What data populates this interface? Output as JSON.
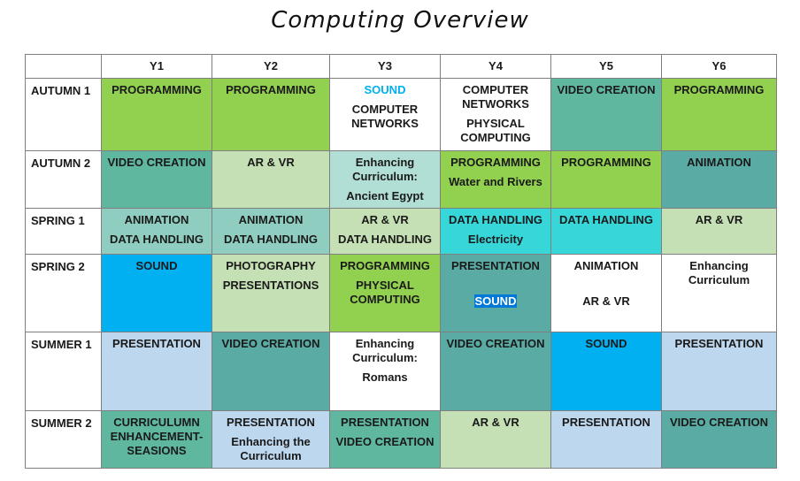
{
  "title": "Computing Overview",
  "years": [
    "Y1",
    "Y2",
    "Y3",
    "Y4",
    "Y5",
    "Y6"
  ],
  "terms": [
    "AUTUMN 1",
    "AUTUMN 2",
    "SPRING 1",
    "SPRING 2",
    "SUMMER 1",
    "SUMMER 2"
  ],
  "cells": {
    "a1": {
      "y1": [
        "PROGRAMMING"
      ],
      "y2": [
        "PROGRAMMING"
      ],
      "y3": [
        "SOUND",
        "COMPUTER NETWORKS"
      ],
      "y4": [
        "COMPUTER NETWORKS",
        "PHYSICAL COMPUTING"
      ],
      "y5": [
        "VIDEO CREATION"
      ],
      "y6": [
        "PROGRAMMING"
      ]
    },
    "a2": {
      "y1": [
        "VIDEO CREATION"
      ],
      "y2": [
        "AR & VR"
      ],
      "y3": [
        "Enhancing Curriculum:",
        "Ancient Egypt"
      ],
      "y4": [
        "PROGRAMMING",
        "Water and Rivers"
      ],
      "y5": [
        "PROGRAMMING"
      ],
      "y6": [
        "ANIMATION"
      ]
    },
    "s1": {
      "y1": [
        "ANIMATION",
        "DATA HANDLING"
      ],
      "y2": [
        "ANIMATION",
        "DATA HANDLING"
      ],
      "y3": [
        "AR & VR",
        "DATA HANDLING"
      ],
      "y4": [
        "DATA HANDLING",
        "Electricity"
      ],
      "y5": [
        "DATA HANDLING"
      ],
      "y6": [
        "AR & VR"
      ]
    },
    "s2": {
      "y1": [
        "SOUND"
      ],
      "y2": [
        "PHOTOGRAPHY",
        "PRESENTATIONS"
      ],
      "y3": [
        "PROGRAMMING",
        "PHYSICAL COMPUTING"
      ],
      "y4": [
        "PRESENTATION",
        "SOUND"
      ],
      "y5": [
        "ANIMATION",
        "AR & VR"
      ],
      "y6": [
        "Enhancing Curriculum"
      ]
    },
    "u1": {
      "y1": [
        "PRESENTATION"
      ],
      "y2": [
        "VIDEO CREATION"
      ],
      "y3": [
        "Enhancing Curriculum:",
        "Romans"
      ],
      "y4": [
        "VIDEO CREATION"
      ],
      "y5": [
        "SOUND"
      ],
      "y6": [
        "PRESENTATION"
      ]
    },
    "u2": {
      "y1": [
        "CURRICULUMN ENHANCEMENT- SEASIONS"
      ],
      "y2": [
        "PRESENTATION",
        "Enhancing the Curriculum"
      ],
      "y3": [
        "PRESENTATION",
        "VIDEO CREATION"
      ],
      "y4": [
        "AR & VR"
      ],
      "y5": [
        "PRESENTATION"
      ],
      "y6": [
        "VIDEO CREATION"
      ]
    }
  },
  "colors": {
    "green": "#92d050",
    "teal": "#5fb7a0",
    "light_green": "#c5e0b4",
    "light_teal": "#b2dfd5",
    "dark_teal": "#5aaba3",
    "cyan": "#36d6d9",
    "blue": "#00b0f0",
    "light_blue": "#bdd7ee",
    "highlight": "#0078d7"
  }
}
